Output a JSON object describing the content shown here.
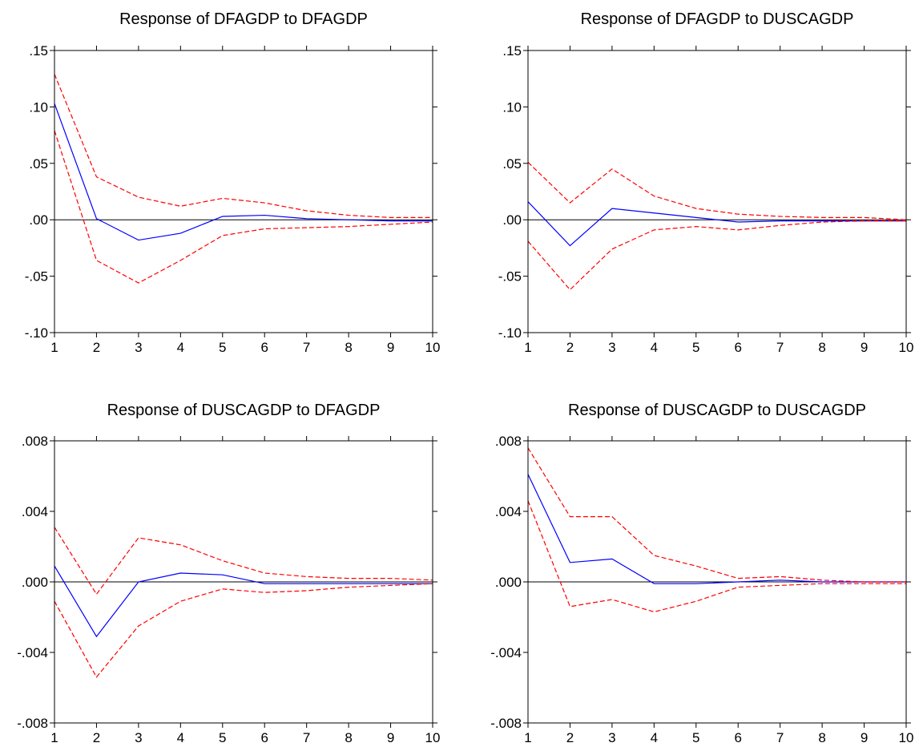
{
  "chart_data": [
    {
      "type": "line",
      "title": "Response of DFAGDP to DFAGDP",
      "x": [
        1,
        2,
        3,
        4,
        5,
        6,
        7,
        8,
        9,
        10
      ],
      "ylim": [
        -0.1,
        0.15
      ],
      "yticks": [
        0.15,
        0.1,
        0.05,
        0.0,
        -0.05,
        -0.1
      ],
      "ytick_labels": [
        ".15",
        ".10",
        ".05",
        ".00",
        "-.05",
        "-.10"
      ],
      "xtick_labels": [
        "1",
        "2",
        "3",
        "4",
        "5",
        "6",
        "7",
        "8",
        "9",
        "10"
      ],
      "series": [
        {
          "role": "response",
          "color": "#0000ff",
          "dash": "solid",
          "values": [
            0.103,
            0.001,
            -0.018,
            -0.012,
            0.003,
            0.004,
            0.001,
            0.0,
            -0.001,
            -0.001
          ]
        },
        {
          "role": "upper",
          "color": "#ff0000",
          "dash": "dashed",
          "values": [
            0.129,
            0.038,
            0.02,
            0.012,
            0.019,
            0.015,
            0.008,
            0.004,
            0.002,
            0.002
          ]
        },
        {
          "role": "lower",
          "color": "#ff0000",
          "dash": "dashed",
          "values": [
            0.079,
            -0.036,
            -0.056,
            -0.036,
            -0.014,
            -0.008,
            -0.007,
            -0.006,
            -0.004,
            -0.002
          ]
        }
      ]
    },
    {
      "type": "line",
      "title": "Response of DFAGDP to DUSCAGDP",
      "x": [
        1,
        2,
        3,
        4,
        5,
        6,
        7,
        8,
        9,
        10
      ],
      "ylim": [
        -0.1,
        0.15
      ],
      "yticks": [
        0.15,
        0.1,
        0.05,
        0.0,
        -0.05,
        -0.1
      ],
      "ytick_labels": [
        ".15",
        ".10",
        ".05",
        ".00",
        "-.05",
        "-.10"
      ],
      "xtick_labels": [
        "1",
        "2",
        "3",
        "4",
        "5",
        "6",
        "7",
        "8",
        "9",
        "10"
      ],
      "series": [
        {
          "role": "response",
          "color": "#0000ff",
          "dash": "solid",
          "values": [
            0.016,
            -0.023,
            0.01,
            0.006,
            0.002,
            -0.002,
            -0.001,
            -0.001,
            -0.001,
            -0.001
          ]
        },
        {
          "role": "upper",
          "color": "#ff0000",
          "dash": "dashed",
          "values": [
            0.051,
            0.015,
            0.045,
            0.021,
            0.01,
            0.005,
            0.003,
            0.002,
            0.002,
            0.0
          ]
        },
        {
          "role": "lower",
          "color": "#ff0000",
          "dash": "dashed",
          "values": [
            -0.019,
            -0.062,
            -0.026,
            -0.009,
            -0.006,
            -0.009,
            -0.005,
            -0.002,
            -0.001,
            -0.001
          ]
        }
      ]
    },
    {
      "type": "line",
      "title": "Response of DUSCAGDP to DFAGDP",
      "x": [
        1,
        2,
        3,
        4,
        5,
        6,
        7,
        8,
        9,
        10
      ],
      "ylim": [
        -0.008,
        0.008
      ],
      "yticks": [
        0.008,
        0.004,
        0.0,
        -0.004,
        -0.008
      ],
      "ytick_labels": [
        ".008",
        ".004",
        ".000",
        "-.004",
        "-.008"
      ],
      "xtick_labels": [
        "1",
        "2",
        "3",
        "4",
        "5",
        "6",
        "7",
        "8",
        "9",
        "10"
      ],
      "series": [
        {
          "role": "response",
          "color": "#0000ff",
          "dash": "solid",
          "values": [
            0.0009,
            -0.0031,
            0.0,
            0.0005,
            0.0004,
            -0.0001,
            -0.0001,
            -0.0001,
            -0.0001,
            -0.0001
          ]
        },
        {
          "role": "upper",
          "color": "#ff0000",
          "dash": "dashed",
          "values": [
            0.0031,
            -0.0007,
            0.0025,
            0.0021,
            0.0012,
            0.0005,
            0.0003,
            0.0002,
            0.0002,
            0.0001
          ]
        },
        {
          "role": "lower",
          "color": "#ff0000",
          "dash": "dashed",
          "values": [
            -0.0011,
            -0.0054,
            -0.0025,
            -0.0011,
            -0.0004,
            -0.0006,
            -0.0005,
            -0.0003,
            -0.0002,
            -0.0001
          ]
        }
      ]
    },
    {
      "type": "line",
      "title": "Response of DUSCAGDP to DUSCAGDP",
      "x": [
        1,
        2,
        3,
        4,
        5,
        6,
        7,
        8,
        9,
        10
      ],
      "ylim": [
        -0.008,
        0.008
      ],
      "yticks": [
        0.008,
        0.004,
        0.0,
        -0.004,
        -0.008
      ],
      "ytick_labels": [
        ".008",
        ".004",
        ".000",
        "-.004",
        "-.008"
      ],
      "xtick_labels": [
        "1",
        "2",
        "3",
        "4",
        "5",
        "6",
        "7",
        "8",
        "9",
        "10"
      ],
      "series": [
        {
          "role": "response",
          "color": "#0000ff",
          "dash": "solid",
          "values": [
            0.0061,
            0.0011,
            0.0013,
            -0.0001,
            -0.0001,
            0.0,
            0.0001,
            0.0,
            0.0,
            0.0
          ]
        },
        {
          "role": "upper",
          "color": "#ff0000",
          "dash": "dashed",
          "values": [
            0.0076,
            0.0037,
            0.0037,
            0.0015,
            0.0009,
            0.0002,
            0.0003,
            0.0001,
            0.0,
            0.0
          ]
        },
        {
          "role": "lower",
          "color": "#ff0000",
          "dash": "dashed",
          "values": [
            0.0046,
            -0.0014,
            -0.001,
            -0.0017,
            -0.0011,
            -0.0003,
            -0.0002,
            -0.0001,
            -0.0001,
            -0.0001
          ]
        }
      ]
    }
  ]
}
